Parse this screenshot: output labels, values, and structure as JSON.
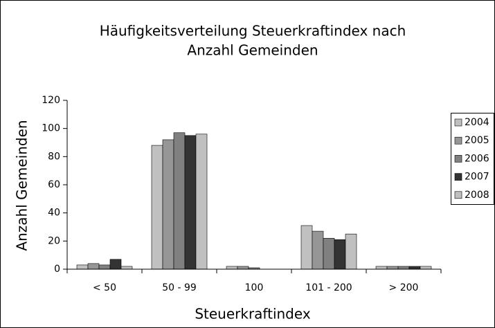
{
  "chart_data": {
    "type": "bar",
    "title": [
      "Häufigkeitsverteilung Steuerkraftindex nach",
      "Anzahl Gemeinden"
    ],
    "x_label": "Steuerkraftindex",
    "y_label": "Anzahl Gemeinden",
    "categories": [
      "< 50",
      "50 - 99",
      "100",
      "101 - 200",
      "> 200"
    ],
    "series": [
      {
        "name": "2004",
        "color": "#c0c0c0",
        "values": [
          3,
          88,
          2,
          31,
          2
        ]
      },
      {
        "name": "2005",
        "color": "#969696",
        "values": [
          4,
          92,
          2,
          27,
          2
        ]
      },
      {
        "name": "2006",
        "color": "#808080",
        "values": [
          3,
          97,
          1,
          22,
          2
        ]
      },
      {
        "name": "2007",
        "color": "#333333",
        "values": [
          7,
          95,
          0,
          21,
          2
        ]
      },
      {
        "name": "2008",
        "color": "#c0c0c0",
        "values": [
          2,
          96,
          0,
          25,
          2
        ]
      }
    ],
    "ylim": [
      0,
      120
    ],
    "yticks": [
      0,
      20,
      40,
      60,
      80,
      100,
      120
    ],
    "legend": "right"
  }
}
